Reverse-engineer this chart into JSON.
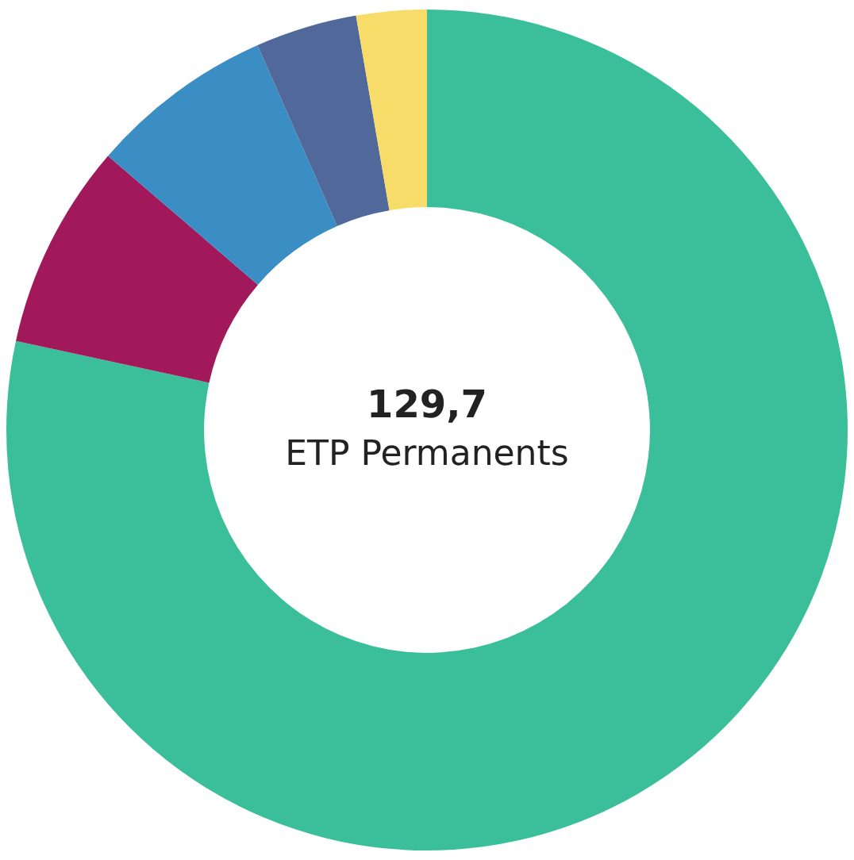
{
  "chart_data": {
    "type": "donut",
    "categories": [
      null,
      null,
      null,
      null,
      null
    ],
    "values": [
      78.4,
      7.9,
      7.1,
      3.9,
      2.7
    ],
    "colors": [
      "#3bbf9a",
      "#a2195b",
      "#3a8ec3",
      "#50699a",
      "#f8dc6a"
    ],
    "annotations": [
      "129,7",
      "ETP Permanents"
    ],
    "legend": false
  }
}
